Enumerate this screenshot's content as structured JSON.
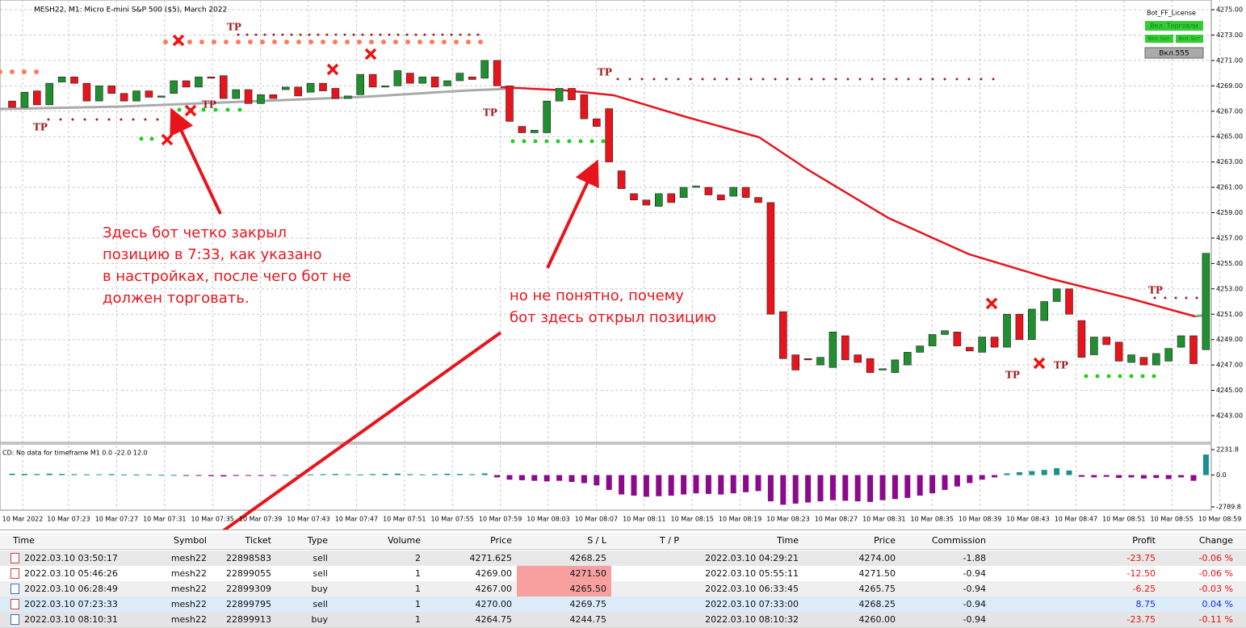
{
  "chart": {
    "title": "MESH22, M1:  Micro E-mini S&P 500 ($5), March 2022",
    "license": "Bot_FF_License",
    "buttons": [
      "Вкл. Торговли",
      "Вкл. Бот",
      "Вкл. Бот",
      "Вкл.555"
    ],
    "price_axis": [
      {
        "value": 4275,
        "label": "4275.00"
      },
      {
        "value": 4273,
        "label": "4273.00"
      },
      {
        "value": 4271,
        "label": "4271.00"
      },
      {
        "value": 4269,
        "label": "4269.00"
      },
      {
        "value": 4267,
        "label": "4267.00"
      },
      {
        "value": 4265,
        "label": "4265.00"
      },
      {
        "value": 4263,
        "label": "4263.00"
      },
      {
        "value": 4261,
        "label": "4261.00"
      },
      {
        "value": 4259,
        "label": "4259.00"
      },
      {
        "value": 4257,
        "label": "4257.00"
      },
      {
        "value": 4255,
        "label": "4255.00"
      },
      {
        "value": 4253,
        "label": "4253.00"
      },
      {
        "value": 4251,
        "label": "4251.00"
      },
      {
        "value": 4249,
        "label": "4249.00"
      },
      {
        "value": 4247,
        "label": "4247.00"
      },
      {
        "value": 4245,
        "label": "4245.00"
      },
      {
        "value": 4243,
        "label": "4243.00"
      }
    ],
    "time_axis": [
      "10 Mar 2022",
      "10 Mar 07:23",
      "10 Mar 07:27",
      "10 Mar 07:31",
      "10 Mar 07:35",
      "10 Mar 07:39",
      "10 Mar 07:43",
      "10 Mar 07:47",
      "10 Mar 07:51",
      "10 Mar 07:55",
      "10 Mar 07:59",
      "10 Mar 08:03",
      "10 Mar 08:07",
      "10 Mar 08:11",
      "10 Mar 08:15",
      "10 Mar 08:19",
      "10 Mar 08:23",
      "10 Mar 08:27",
      "10 Mar 08:31",
      "10 Mar 08:35",
      "10 Mar 08:39",
      "10 Mar 08:43",
      "10 Mar 08:47",
      "10 Mar 08:51",
      "10 Mar 08:55",
      "10 Mar 08:59"
    ],
    "tp_label": "TP",
    "candles": [
      [
        4267.8,
        4267.3
      ],
      [
        4267.3,
        4268.5
      ],
      [
        4268.6,
        4267.5
      ],
      [
        4267.5,
        4269.2
      ],
      [
        4269.3,
        4269.7
      ],
      [
        4269.7,
        4269.2
      ],
      [
        4269.2,
        4267.8
      ],
      [
        4267.8,
        4269.0
      ],
      [
        4269.0,
        4268.4
      ],
      [
        4268.4,
        4267.8
      ],
      [
        4267.8,
        4268.6
      ],
      [
        4268.6,
        4268.1
      ],
      [
        4268.1,
        4268.2
      ],
      [
        4268.4,
        4269.4
      ],
      [
        4269.4,
        4268.9
      ],
      [
        4268.9,
        4269.7
      ],
      [
        4269.7,
        4269.6
      ],
      [
        4269.8,
        4268.0
      ],
      [
        4268.0,
        4268.7
      ],
      [
        4268.7,
        4267.6
      ],
      [
        4267.6,
        4268.3
      ],
      [
        4268.3,
        4268.0
      ],
      [
        4268.7,
        4268.9
      ],
      [
        4268.9,
        4268.2
      ],
      [
        4268.5,
        4269.2
      ],
      [
        4269.2,
        4268.6
      ],
      [
        4268.8,
        4268.0
      ],
      [
        4268.0,
        4268.2
      ],
      [
        4268.3,
        4269.9
      ],
      [
        4269.9,
        4268.9
      ],
      [
        4268.9,
        4269.0
      ],
      [
        4269.0,
        4270.2
      ],
      [
        4270.0,
        4269.2
      ],
      [
        4269.2,
        4269.7
      ],
      [
        4269.7,
        4268.9
      ],
      [
        4269.0,
        4269.4
      ],
      [
        4269.4,
        4270.0
      ],
      [
        4269.7,
        4269.5
      ],
      [
        4269.6,
        4271.0
      ],
      [
        4271.0,
        4269.0
      ],
      [
        4269.0,
        4266.2
      ],
      [
        4265.8,
        4265.3
      ],
      [
        4265.3,
        4265.5
      ],
      [
        4265.3,
        4267.8
      ],
      [
        4267.8,
        4268.8
      ],
      [
        4268.8,
        4267.9
      ],
      [
        4268.3,
        4266.4
      ],
      [
        4266.4,
        4265.8
      ],
      [
        4267.2,
        4263.0
      ],
      [
        4262.3,
        4260.9
      ],
      [
        4260.5,
        4260.0
      ],
      [
        4260.0,
        4259.6
      ],
      [
        4259.5,
        4260.5
      ],
      [
        4260.5,
        4259.8
      ],
      [
        4260.2,
        4261.0
      ],
      [
        4261.0,
        4261.1
      ],
      [
        4261.0,
        4260.4
      ],
      [
        4260.4,
        4260.0
      ],
      [
        4260.3,
        4261.0
      ],
      [
        4261.0,
        4260.2
      ],
      [
        4260.2,
        4259.8
      ],
      [
        4259.8,
        4251.0
      ],
      [
        4251.2,
        4247.5
      ],
      [
        4247.8,
        4246.6
      ],
      [
        4247.5,
        4247.4
      ],
      [
        4247.0,
        4247.6
      ],
      [
        4246.8,
        4249.6
      ],
      [
        4249.3,
        4247.4
      ],
      [
        4247.8,
        4247.2
      ],
      [
        4247.5,
        4246.4
      ],
      [
        4246.6,
        4246.7
      ],
      [
        4246.4,
        4247.4
      ],
      [
        4247.0,
        4248.0
      ],
      [
        4248.0,
        4248.5
      ],
      [
        4248.5,
        4249.4
      ],
      [
        4249.4,
        4249.7
      ],
      [
        4249.6,
        4248.5
      ],
      [
        4248.4,
        4248.1
      ],
      [
        4248.0,
        4249.2
      ],
      [
        4249.2,
        4248.4
      ],
      [
        4248.4,
        4251.0
      ],
      [
        4251.0,
        4249.0
      ],
      [
        4249.0,
        4251.4
      ],
      [
        4250.5,
        4252.0
      ],
      [
        4252.0,
        4253.0
      ],
      [
        4253.0,
        4251.0
      ],
      [
        4250.5,
        4247.6
      ],
      [
        4247.8,
        4249.2
      ],
      [
        4249.2,
        4248.6
      ],
      [
        4248.8,
        4247.3
      ],
      [
        4247.2,
        4247.8
      ],
      [
        4247.6,
        4247.0
      ],
      [
        4247.0,
        4247.9
      ],
      [
        4247.3,
        4248.3
      ],
      [
        4248.4,
        4249.3
      ],
      [
        4249.3,
        4247.1
      ],
      [
        4248.2,
        4255.8
      ]
    ],
    "indicator": {
      "label": "CD: No data for timeframe M1 0.0 -22.0 12.0",
      "axis": [
        2231.8,
        {
          "value": 0,
          "label": "0.0"
        },
        -2789.8
      ],
      "values": [
        120,
        110,
        90,
        130,
        100,
        80,
        60,
        70,
        90,
        50,
        40,
        60,
        30,
        20,
        -40,
        -60,
        -90,
        -120,
        -80,
        -60,
        -40,
        -30,
        20,
        40,
        60,
        80,
        100,
        70,
        50,
        90,
        110,
        130,
        80,
        60,
        90,
        120,
        100,
        80,
        150,
        -200,
        -400,
        -450,
        -500,
        -550,
        -500,
        -600,
        -700,
        -900,
        -1300,
        -1700,
        -1800,
        -1900,
        -1850,
        -1800,
        -1700,
        -1600,
        -1650,
        -1700,
        -1600,
        -1500,
        -1400,
        -2300,
        -2600,
        -2500,
        -2400,
        -2300,
        -2200,
        -2250,
        -2300,
        -2350,
        -2200,
        -2100,
        -2000,
        -1800,
        -1600,
        -1300,
        -1000,
        -700,
        -400,
        -200,
        150,
        250,
        350,
        450,
        600,
        400,
        -150,
        -200,
        -150,
        -250,
        -200,
        -300,
        -250,
        -350,
        -200,
        -500,
        1800
      ]
    },
    "annotations": [
      [
        "Здесь бот четко закрыл",
        "позицию в 7:33, как указано",
        "в настройках, после чего бот не",
        "должен торговать."
      ],
      [
        "но не понятно, почему",
        "бот здесь открыл позицию"
      ]
    ]
  },
  "table": {
    "headers": [
      "Time",
      "Symbol",
      "Ticket",
      "Type",
      "Volume",
      "Price",
      "S / L",
      "T / P",
      "Time",
      "Price",
      "Commission",
      "Profit",
      "Change"
    ],
    "rows": [
      {
        "time": "2022.03.10 03:50:17",
        "symbol": "mesh22",
        "ticket": "22898583",
        "type": "sell",
        "volume": "2",
        "price": "4271.625",
        "sl": "4268.25",
        "close_time": "2022.03.10 04:29:21",
        "close_price": "4274.00",
        "commission": "-1.88",
        "profit": "-23.75",
        "change": "-0.06 %"
      },
      {
        "time": "2022.03.10 05:46:26",
        "symbol": "mesh22",
        "ticket": "22899055",
        "type": "sell",
        "volume": "1",
        "price": "4269.00",
        "sl": "4271.50",
        "close_time": "2022.03.10 05:55:11",
        "close_price": "4271.50",
        "commission": "-0.94",
        "profit": "-12.50",
        "change": "-0.06 %"
      },
      {
        "time": "2022.03.10 06:28:49",
        "symbol": "mesh22",
        "ticket": "22899309",
        "type": "buy",
        "volume": "1",
        "price": "4267.00",
        "sl": "4265.50",
        "close_time": "2022.03.10 06:33:45",
        "close_price": "4265.75",
        "commission": "-0.94",
        "profit": "-6.25",
        "change": "-0.03 %"
      },
      {
        "time": "2022.03.10 07:23:33",
        "symbol": "mesh22",
        "ticket": "22899795",
        "type": "sell",
        "volume": "1",
        "price": "4270.00",
        "sl": "4269.75",
        "close_time": "2022.03.10 07:33:00",
        "close_price": "4268.25",
        "commission": "-0.94",
        "profit": "8.75",
        "change": "0.04 %"
      },
      {
        "time": "2022.03.10 08:10:31",
        "symbol": "mesh22",
        "ticket": "22899913",
        "type": "buy",
        "volume": "1",
        "price": "4264.75",
        "sl": "4244.75",
        "close_time": "2022.03.10 08:10:32",
        "close_price": "4260.00",
        "commission": "-0.94",
        "profit": "-23.75",
        "change": "-0.11 %"
      }
    ]
  }
}
